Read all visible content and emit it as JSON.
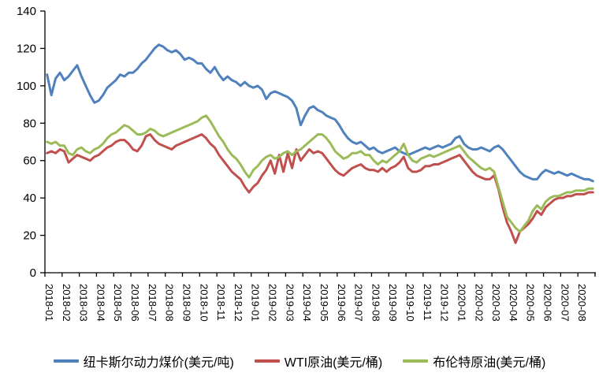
{
  "chart_data": {
    "type": "line",
    "title": "",
    "xlabel": "",
    "ylabel": "",
    "ylim": [
      0,
      140
    ],
    "ytick_step": 20,
    "grid": false,
    "legend_position": "bottom",
    "axis_color": "#000000",
    "background": "#ffffff",
    "x_label_rotation_deg": 90,
    "points_per_month": 4,
    "categories": [
      "2018-01",
      "2018-02",
      "2018-03",
      "2018-04",
      "2018-05",
      "2018-06",
      "2018-07",
      "2018-08",
      "2018-09",
      "2018-10",
      "2018-11",
      "2018-12",
      "2019-01",
      "2019-02",
      "2019-03",
      "2019-04",
      "2019-05",
      "2019-06",
      "2019-07",
      "2019-08",
      "2019-09",
      "2019-10",
      "2019-11",
      "2019-12",
      "2020-01",
      "2020-02",
      "2020-03",
      "2020-04",
      "2020-05",
      "2020-06",
      "2020-07",
      "2020-08"
    ],
    "series": [
      {
        "name": "纽卡斯尔动力煤价(美元/吨)",
        "color": "#4F81BD",
        "values": [
          106,
          95,
          104,
          107,
          103,
          105,
          108,
          111,
          105,
          100,
          95,
          91,
          92,
          95,
          99,
          101,
          103,
          106,
          105,
          107,
          107,
          109,
          112,
          114,
          117,
          120,
          122,
          121,
          119,
          118,
          119,
          117,
          114,
          115,
          114,
          112,
          112,
          109,
          107,
          110,
          106,
          103,
          105,
          103,
          102,
          100,
          102,
          100,
          99,
          100,
          98,
          93,
          96,
          97,
          96,
          95,
          94,
          92,
          88,
          79,
          84,
          88,
          89,
          87,
          86,
          84,
          83,
          82,
          79,
          75,
          72,
          70,
          69,
          70,
          68,
          66,
          67,
          65,
          64,
          65,
          66,
          67,
          65,
          64,
          63,
          64,
          65,
          66,
          67,
          66,
          67,
          68,
          67,
          68,
          69,
          72,
          73,
          69,
          67,
          66,
          66,
          67,
          66,
          65,
          67,
          68,
          66,
          63,
          60,
          57,
          54,
          52,
          51,
          50,
          50,
          53,
          55,
          54,
          53,
          54,
          53,
          52,
          53,
          52,
          51,
          50,
          50,
          49
        ]
      },
      {
        "name": "WTI原油(美元/桶)",
        "color": "#C0504D",
        "values": [
          64,
          65,
          64,
          66,
          65,
          59,
          61,
          63,
          62,
          61,
          60,
          62,
          63,
          65,
          67,
          68,
          70,
          71,
          71,
          69,
          66,
          65,
          68,
          73,
          74,
          71,
          69,
          68,
          67,
          66,
          68,
          69,
          70,
          71,
          72,
          73,
          74,
          72,
          69,
          67,
          63,
          60,
          57,
          54,
          52,
          50,
          46,
          43,
          46,
          48,
          52,
          55,
          60,
          53,
          63,
          54,
          64,
          56,
          66,
          60,
          63,
          66,
          64,
          65,
          64,
          61,
          58,
          55,
          53,
          52,
          54,
          56,
          57,
          58,
          56,
          55,
          55,
          54,
          56,
          54,
          56,
          57,
          59,
          62,
          56,
          54,
          54,
          55,
          57,
          57,
          58,
          58,
          59,
          60,
          61,
          62,
          63,
          60,
          57,
          54,
          52,
          51,
          50,
          50,
          52,
          45,
          35,
          27,
          22,
          16,
          22,
          24,
          26,
          29,
          33,
          31,
          35,
          37,
          39,
          40,
          40,
          41,
          41,
          42,
          42,
          42,
          43,
          43
        ]
      },
      {
        "name": "布伦特原油(美元/桶)",
        "color": "#9BBB59",
        "values": [
          70,
          69,
          70,
          68,
          68,
          64,
          63,
          66,
          67,
          65,
          64,
          66,
          67,
          69,
          72,
          74,
          75,
          77,
          79,
          78,
          76,
          74,
          74,
          75,
          77,
          76,
          74,
          73,
          74,
          75,
          76,
          77,
          78,
          79,
          80,
          81,
          83,
          84,
          81,
          77,
          73,
          70,
          66,
          63,
          61,
          58,
          54,
          51,
          55,
          57,
          60,
          62,
          63,
          61,
          62,
          64,
          65,
          63,
          65,
          66,
          68,
          70,
          72,
          74,
          74,
          72,
          69,
          65,
          63,
          61,
          62,
          64,
          64,
          65,
          63,
          63,
          60,
          58,
          60,
          59,
          61,
          63,
          65,
          69,
          63,
          60,
          59,
          61,
          62,
          63,
          62,
          63,
          64,
          65,
          66,
          67,
          68,
          65,
          62,
          60,
          58,
          56,
          55,
          56,
          54,
          46,
          38,
          30,
          27,
          24,
          22,
          25,
          28,
          33,
          36,
          34,
          38,
          40,
          41,
          41,
          42,
          43,
          43,
          44,
          44,
          44,
          45,
          45
        ]
      }
    ]
  },
  "legend": {
    "items": [
      {
        "label": "纽卡斯尔动力煤价(美元/吨)"
      },
      {
        "label": "WTI原油(美元/桶)"
      },
      {
        "label": "布伦特原油(美元/桶)"
      }
    ]
  }
}
